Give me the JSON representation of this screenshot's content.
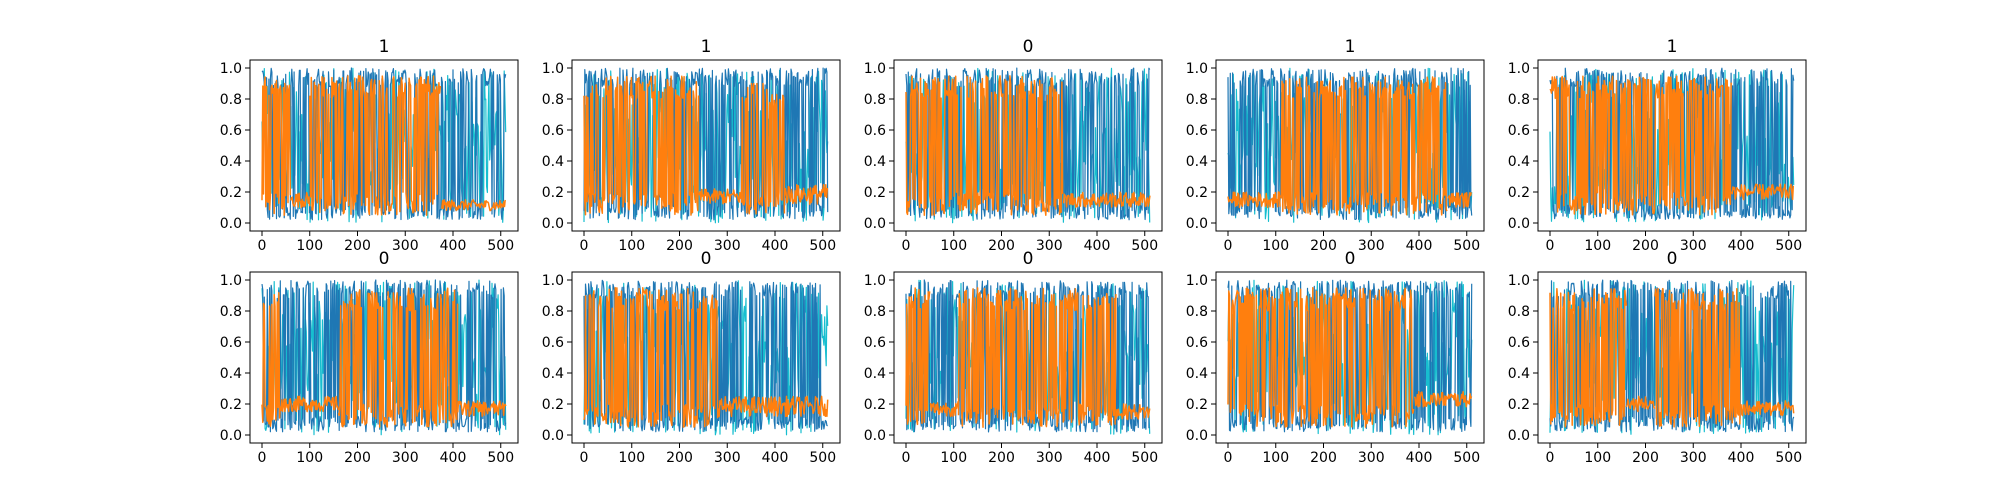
{
  "chart_data": [
    {
      "type": "line",
      "title": "1",
      "xlim": [
        0,
        511
      ],
      "ylim": [
        0,
        1
      ],
      "xticks": [
        "0",
        "100",
        "200",
        "300",
        "400",
        "500"
      ],
      "yticks": [
        "0.0",
        "0.2",
        "0.4",
        "0.6",
        "0.8",
        "1.0"
      ],
      "grid": false,
      "series": [
        {
          "color": "#17becf",
          "regime": [
            {
              "x": [
                0,
                511
              ],
              "y": [
                0,
                1
              ]
            }
          ]
        },
        {
          "color": "#1f77b4",
          "regime": [
            {
              "x": [
                0,
                511
              ],
              "y": [
                0,
                1
              ]
            }
          ]
        },
        {
          "color": "#ff7f0e",
          "regime": [
            {
              "x": [
                0,
                60
              ],
              "y": [
                0.05,
                0.95
              ]
            },
            {
              "x": [
                60,
                100
              ],
              "y": [
                0.1,
                0.2
              ]
            },
            {
              "x": [
                100,
                375
              ],
              "y": [
                0.05,
                0.95
              ]
            },
            {
              "x": [
                375,
                511
              ],
              "y": [
                0.08,
                0.15
              ]
            }
          ]
        }
      ]
    },
    {
      "type": "line",
      "title": "1",
      "xlim": [
        0,
        511
      ],
      "ylim": [
        0,
        1
      ],
      "xticks": [
        "0",
        "100",
        "200",
        "300",
        "400",
        "500"
      ],
      "yticks": [
        "0.0",
        "0.2",
        "0.4",
        "0.6",
        "0.8",
        "1.0"
      ],
      "grid": false,
      "series": [
        {
          "color": "#17becf",
          "regime": [
            {
              "x": [
                0,
                511
              ],
              "y": [
                0,
                1
              ]
            }
          ]
        },
        {
          "color": "#1f77b4",
          "regime": [
            {
              "x": [
                0,
                511
              ],
              "y": [
                0,
                1
              ]
            }
          ]
        },
        {
          "color": "#ff7f0e",
          "regime": [
            {
              "x": [
                0,
                240
              ],
              "y": [
                0.05,
                0.95
              ]
            },
            {
              "x": [
                240,
                330
              ],
              "y": [
                0.12,
                0.22
              ]
            },
            {
              "x": [
                330,
                420
              ],
              "y": [
                0.05,
                0.9
              ]
            },
            {
              "x": [
                420,
                511
              ],
              "y": [
                0.12,
                0.25
              ]
            }
          ]
        }
      ]
    },
    {
      "type": "line",
      "title": "0",
      "xlim": [
        0,
        511
      ],
      "ylim": [
        0,
        1
      ],
      "xticks": [
        "0",
        "100",
        "200",
        "300",
        "400",
        "500"
      ],
      "yticks": [
        "0.0",
        "0.2",
        "0.4",
        "0.6",
        "0.8",
        "1.0"
      ],
      "grid": false,
      "series": [
        {
          "color": "#17becf",
          "regime": [
            {
              "x": [
                0,
                511
              ],
              "y": [
                0,
                1
              ]
            }
          ]
        },
        {
          "color": "#1f77b4",
          "regime": [
            {
              "x": [
                0,
                511
              ],
              "y": [
                0,
                1
              ]
            }
          ]
        },
        {
          "color": "#ff7f0e",
          "regime": [
            {
              "x": [
                0,
                330
              ],
              "y": [
                0.05,
                0.95
              ]
            },
            {
              "x": [
                330,
                511
              ],
              "y": [
                0.1,
                0.2
              ]
            }
          ]
        }
      ]
    },
    {
      "type": "line",
      "title": "1",
      "xlim": [
        0,
        511
      ],
      "ylim": [
        0,
        1
      ],
      "xticks": [
        "0",
        "100",
        "200",
        "300",
        "400",
        "500"
      ],
      "yticks": [
        "0.0",
        "0.2",
        "0.4",
        "0.6",
        "0.8",
        "1.0"
      ],
      "grid": false,
      "series": [
        {
          "color": "#17becf",
          "regime": [
            {
              "x": [
                0,
                511
              ],
              "y": [
                0,
                1
              ]
            }
          ]
        },
        {
          "color": "#1f77b4",
          "regime": [
            {
              "x": [
                0,
                511
              ],
              "y": [
                0,
                1
              ]
            }
          ]
        },
        {
          "color": "#ff7f0e",
          "regime": [
            {
              "x": [
                0,
                110
              ],
              "y": [
                0.1,
                0.2
              ]
            },
            {
              "x": [
                110,
                460
              ],
              "y": [
                0.05,
                0.95
              ]
            },
            {
              "x": [
                460,
                511
              ],
              "y": [
                0.1,
                0.2
              ]
            }
          ]
        }
      ]
    },
    {
      "type": "line",
      "title": "1",
      "xlim": [
        0,
        511
      ],
      "ylim": [
        0,
        1
      ],
      "xticks": [
        "0",
        "100",
        "200",
        "300",
        "400",
        "500"
      ],
      "yticks": [
        "0.0",
        "0.2",
        "0.4",
        "0.6",
        "0.8",
        "1.0"
      ],
      "grid": false,
      "series": [
        {
          "color": "#17becf",
          "regime": [
            {
              "x": [
                0,
                511
              ],
              "y": [
                0,
                1
              ]
            }
          ]
        },
        {
          "color": "#1f77b4",
          "regime": [
            {
              "x": [
                0,
                511
              ],
              "y": [
                0,
                1
              ]
            }
          ]
        },
        {
          "color": "#ff7f0e",
          "regime": [
            {
              "x": [
                0,
                380
              ],
              "y": [
                0.05,
                0.95
              ]
            },
            {
              "x": [
                380,
                511
              ],
              "y": [
                0.15,
                0.25
              ]
            }
          ]
        }
      ]
    },
    {
      "type": "line",
      "title": "0",
      "xlim": [
        0,
        511
      ],
      "ylim": [
        0,
        1
      ],
      "xticks": [
        "0",
        "100",
        "200",
        "300",
        "400",
        "500"
      ],
      "yticks": [
        "0.0",
        "0.2",
        "0.4",
        "0.6",
        "0.8",
        "1.0"
      ],
      "grid": false,
      "series": [
        {
          "color": "#17becf",
          "regime": [
            {
              "x": [
                0,
                511
              ],
              "y": [
                0,
                1
              ]
            }
          ]
        },
        {
          "color": "#1f77b4",
          "regime": [
            {
              "x": [
                0,
                511
              ],
              "y": [
                0,
                1
              ]
            }
          ]
        },
        {
          "color": "#ff7f0e",
          "regime": [
            {
              "x": [
                0,
                40
              ],
              "y": [
                0.05,
                0.95
              ]
            },
            {
              "x": [
                40,
                160
              ],
              "y": [
                0.15,
                0.25
              ]
            },
            {
              "x": [
                160,
                410
              ],
              "y": [
                0.05,
                0.95
              ]
            },
            {
              "x": [
                410,
                511
              ],
              "y": [
                0.12,
                0.22
              ]
            }
          ]
        }
      ]
    },
    {
      "type": "line",
      "title": "0",
      "xlim": [
        0,
        511
      ],
      "ylim": [
        0,
        1
      ],
      "xticks": [
        "0",
        "100",
        "200",
        "300",
        "400",
        "500"
      ],
      "yticks": [
        "0.0",
        "0.2",
        "0.4",
        "0.6",
        "0.8",
        "1.0"
      ],
      "grid": false,
      "series": [
        {
          "color": "#17becf",
          "regime": [
            {
              "x": [
                0,
                511
              ],
              "y": [
                0,
                1
              ]
            }
          ]
        },
        {
          "color": "#1f77b4",
          "regime": [
            {
              "x": [
                0,
                511
              ],
              "y": [
                0,
                1
              ]
            }
          ]
        },
        {
          "color": "#ff7f0e",
          "regime": [
            {
              "x": [
                0,
                280
              ],
              "y": [
                0.05,
                0.95
              ]
            },
            {
              "x": [
                280,
                511
              ],
              "y": [
                0.12,
                0.25
              ]
            }
          ]
        }
      ]
    },
    {
      "type": "line",
      "title": "0",
      "xlim": [
        0,
        511
      ],
      "ylim": [
        0,
        1
      ],
      "xticks": [
        "0",
        "100",
        "200",
        "300",
        "400",
        "500"
      ],
      "yticks": [
        "0.0",
        "0.2",
        "0.4",
        "0.6",
        "0.8",
        "1.0"
      ],
      "grid": false,
      "series": [
        {
          "color": "#17becf",
          "regime": [
            {
              "x": [
                0,
                511
              ],
              "y": [
                0,
                1
              ]
            }
          ]
        },
        {
          "color": "#1f77b4",
          "regime": [
            {
              "x": [
                0,
                511
              ],
              "y": [
                0,
                1
              ]
            }
          ]
        },
        {
          "color": "#ff7f0e",
          "regime": [
            {
              "x": [
                0,
                50
              ],
              "y": [
                0.05,
                0.95
              ]
            },
            {
              "x": [
                50,
                110
              ],
              "y": [
                0.12,
                0.22
              ]
            },
            {
              "x": [
                110,
                440
              ],
              "y": [
                0.05,
                0.95
              ]
            },
            {
              "x": [
                440,
                511
              ],
              "y": [
                0.1,
                0.2
              ]
            }
          ]
        }
      ]
    },
    {
      "type": "line",
      "title": "0",
      "xlim": [
        0,
        511
      ],
      "ylim": [
        0,
        1
      ],
      "xticks": [
        "0",
        "100",
        "200",
        "300",
        "400",
        "500"
      ],
      "yticks": [
        "0.0",
        "0.2",
        "0.4",
        "0.6",
        "0.8",
        "1.0"
      ],
      "grid": false,
      "series": [
        {
          "color": "#17becf",
          "regime": [
            {
              "x": [
                0,
                511
              ],
              "y": [
                0,
                1
              ]
            }
          ]
        },
        {
          "color": "#1f77b4",
          "regime": [
            {
              "x": [
                0,
                511
              ],
              "y": [
                0,
                1
              ]
            }
          ]
        },
        {
          "color": "#ff7f0e",
          "regime": [
            {
              "x": [
                0,
                390
              ],
              "y": [
                0.05,
                0.95
              ]
            },
            {
              "x": [
                390,
                511
              ],
              "y": [
                0.18,
                0.28
              ]
            }
          ]
        }
      ]
    },
    {
      "type": "line",
      "title": "0",
      "xlim": [
        0,
        511
      ],
      "ylim": [
        0,
        1
      ],
      "xticks": [
        "0",
        "100",
        "200",
        "300",
        "400",
        "500"
      ],
      "yticks": [
        "0.0",
        "0.2",
        "0.4",
        "0.6",
        "0.8",
        "1.0"
      ],
      "grid": false,
      "series": [
        {
          "color": "#17becf",
          "regime": [
            {
              "x": [
                0,
                511
              ],
              "y": [
                0,
                1
              ]
            }
          ]
        },
        {
          "color": "#1f77b4",
          "regime": [
            {
              "x": [
                0,
                511
              ],
              "y": [
                0,
                1
              ]
            }
          ]
        },
        {
          "color": "#ff7f0e",
          "regime": [
            {
              "x": [
                0,
                160
              ],
              "y": [
                0.05,
                0.95
              ]
            },
            {
              "x": [
                160,
                220
              ],
              "y": [
                0.15,
                0.25
              ]
            },
            {
              "x": [
                220,
                400
              ],
              "y": [
                0.05,
                0.95
              ]
            },
            {
              "x": [
                400,
                511
              ],
              "y": [
                0.12,
                0.22
              ]
            }
          ]
        }
      ]
    }
  ]
}
